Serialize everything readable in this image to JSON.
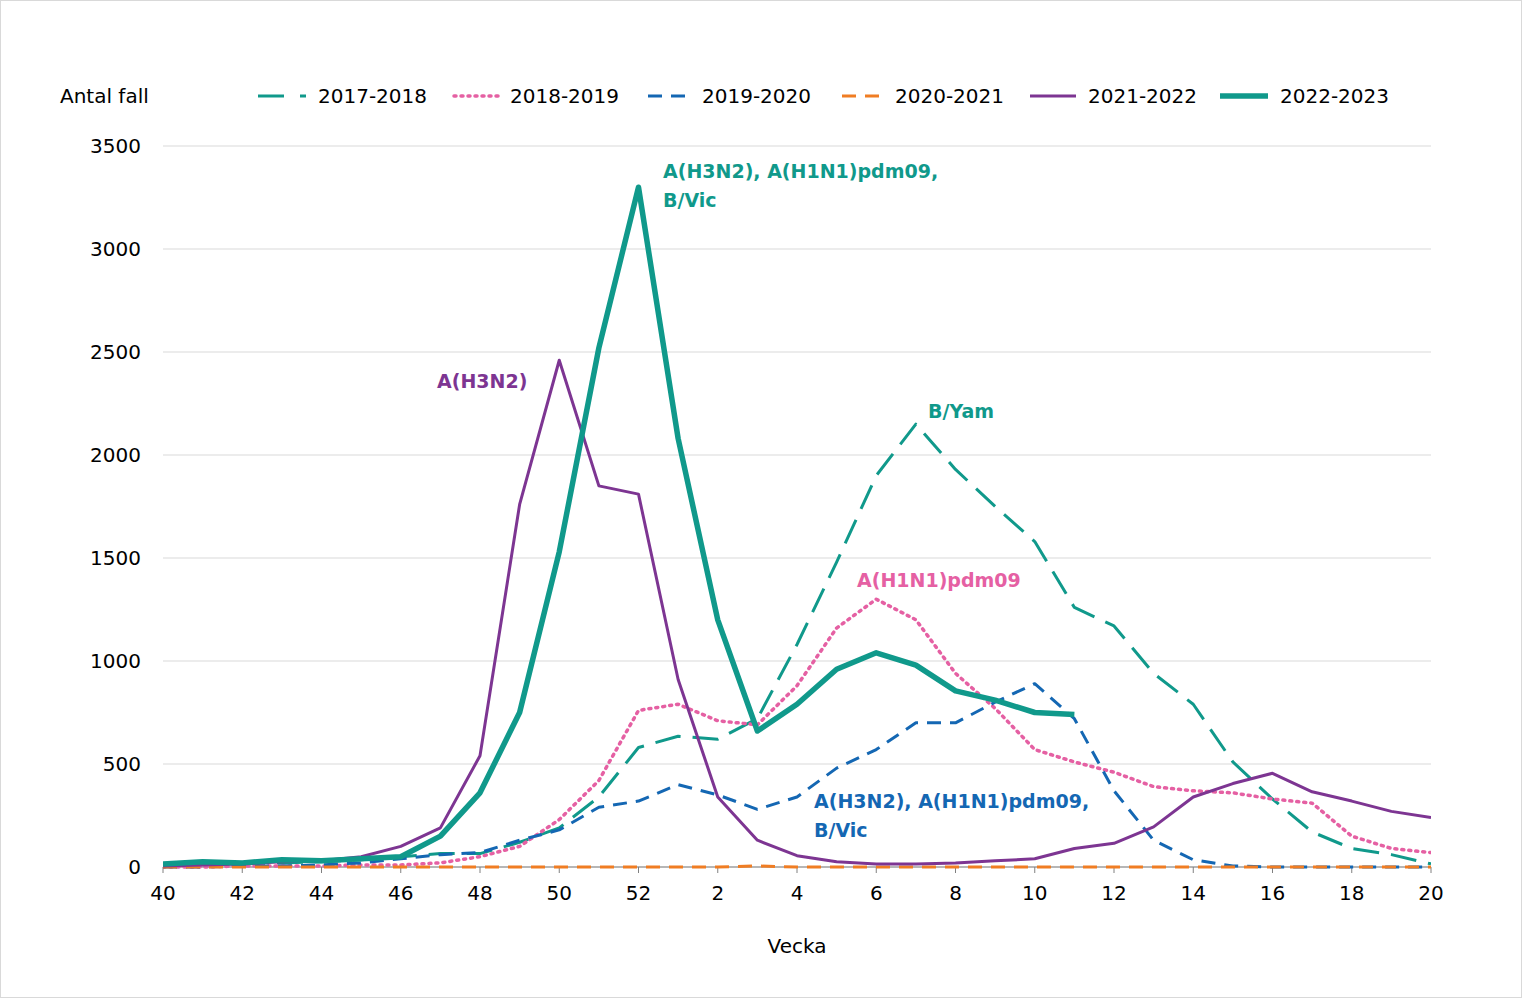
{
  "chart_data": {
    "type": "line",
    "y_label": "Antal fall",
    "x_label": "Vecka",
    "categories": [
      "40",
      null,
      "42",
      null,
      "44",
      null,
      "46",
      null,
      "48",
      null,
      "50",
      null,
      "52",
      null,
      "2",
      null,
      "4",
      null,
      "6",
      null,
      "8",
      null,
      "10",
      null,
      "12",
      null,
      "14",
      null,
      "16",
      null,
      "18",
      null,
      "20"
    ],
    "ylim": [
      0,
      3500
    ],
    "yticks": [
      0,
      500,
      1000,
      1500,
      2000,
      2500,
      3000,
      3500
    ],
    "grid": true,
    "legend": "top",
    "series": [
      {
        "name": "2017-2018",
        "color": "#10998b",
        "line_style": "long-dash",
        "values": [
          10,
          15,
          15,
          20,
          25,
          35,
          50,
          65,
          65,
          120,
          190,
          340,
          580,
          635,
          620,
          720,
          1080,
          1480,
          1900,
          2150,
          1930,
          1750,
          1580,
          1260,
          1170,
          940,
          790,
          510,
          330,
          170,
          90,
          60,
          15
        ]
      },
      {
        "name": "2018-2019",
        "color": "#e560a3",
        "line_style": "dotted",
        "values": [
          0,
          0,
          5,
          5,
          5,
          10,
          10,
          20,
          50,
          100,
          230,
          420,
          760,
          790,
          710,
          690,
          880,
          1160,
          1300,
          1200,
          940,
          770,
          570,
          510,
          460,
          390,
          370,
          360,
          330,
          310,
          150,
          90,
          70
        ]
      },
      {
        "name": "2019-2020",
        "color": "#1467b3",
        "line_style": "dashed",
        "values": [
          0,
          0,
          5,
          5,
          10,
          20,
          40,
          60,
          70,
          130,
          180,
          290,
          320,
          400,
          350,
          280,
          340,
          480,
          570,
          700,
          700,
          800,
          890,
          720,
          370,
          130,
          35,
          5,
          0,
          0,
          0,
          0,
          0
        ]
      },
      {
        "name": "2020-2021",
        "color": "#f07d23",
        "line_style": "dashed",
        "values": [
          0,
          0,
          0,
          0,
          0,
          0,
          0,
          0,
          0,
          0,
          0,
          0,
          0,
          0,
          0,
          5,
          0,
          0,
          0,
          0,
          0,
          0,
          0,
          0,
          0,
          0,
          0,
          0,
          0,
          0,
          0,
          0,
          0
        ]
      },
      {
        "name": "2021-2022",
        "color": "#7d3592",
        "line_style": "solid",
        "values": [
          5,
          10,
          15,
          25,
          30,
          50,
          100,
          190,
          540,
          1760,
          2460,
          1850,
          1810,
          910,
          340,
          130,
          55,
          25,
          15,
          15,
          20,
          30,
          40,
          90,
          115,
          195,
          340,
          405,
          455,
          365,
          320,
          270,
          240
        ]
      },
      {
        "name": "2022-2023",
        "color": "#10998b",
        "line_style": "solid",
        "values": [
          15,
          25,
          20,
          35,
          30,
          40,
          50,
          150,
          360,
          750,
          1530,
          2520,
          3300,
          2080,
          1200,
          660,
          790,
          960,
          1040,
          980,
          855,
          810,
          750,
          740,
          null,
          null,
          null,
          null,
          null,
          null,
          null,
          null,
          null
        ]
      }
    ],
    "annotations": [
      {
        "lines": [
          "A(H3N2), A(H1N1)pdm09,",
          "B/Vic"
        ],
        "color": "#10998b"
      },
      {
        "lines": [
          "A(H3N2)"
        ],
        "color": "#7d3592"
      },
      {
        "lines": [
          "B/Yam"
        ],
        "color": "#10998b"
      },
      {
        "lines": [
          "A(H1N1)pdm09"
        ],
        "color": "#e560a3"
      },
      {
        "lines": [
          "A(H3N2), A(H1N1)pdm09,",
          "B/Vic"
        ],
        "color": "#1467b3"
      }
    ]
  }
}
